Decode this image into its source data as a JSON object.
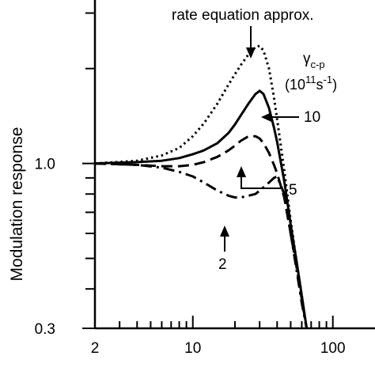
{
  "chart_data": {
    "type": "line",
    "title": "",
    "xlabel": "",
    "ylabel": "Modulation response",
    "x_scale": "log",
    "y_scale": "log",
    "xlim": [
      2,
      200
    ],
    "ylim": [
      0.3,
      3.3
    ],
    "x_tick_labels": [
      "2",
      "10",
      "100"
    ],
    "x_ticks": [
      2,
      10,
      100
    ],
    "y_tick_labels": [
      "1.0",
      "0.3"
    ],
    "y_ticks": [
      1.0,
      0.3
    ],
    "grid": false,
    "legend": "none",
    "series": [
      {
        "name": "rate equation approx.",
        "style": "dotted",
        "x": [
          2,
          4,
          6,
          8,
          10,
          12,
          15,
          18,
          20,
          22,
          25,
          28,
          30,
          32,
          35,
          38,
          40,
          45,
          50,
          55,
          60,
          65
        ],
        "y": [
          1.0,
          1.02,
          1.06,
          1.12,
          1.22,
          1.34,
          1.55,
          1.78,
          1.92,
          2.05,
          2.22,
          2.34,
          2.36,
          2.28,
          2.0,
          1.62,
          1.38,
          0.95,
          0.66,
          0.49,
          0.38,
          0.3
        ]
      },
      {
        "name": "10",
        "style": "solid",
        "x": [
          2,
          4,
          6,
          8,
          10,
          12,
          15,
          18,
          20,
          22,
          25,
          28,
          30,
          32,
          35,
          38,
          40,
          45,
          50,
          55,
          60,
          65
        ],
        "y": [
          1.0,
          1.01,
          1.02,
          1.04,
          1.07,
          1.1,
          1.16,
          1.25,
          1.33,
          1.42,
          1.55,
          1.66,
          1.7,
          1.66,
          1.5,
          1.3,
          1.17,
          0.88,
          0.64,
          0.49,
          0.38,
          0.3
        ]
      },
      {
        "name": "5",
        "style": "dashed",
        "x": [
          2,
          4,
          6,
          8,
          10,
          12,
          15,
          18,
          20,
          22,
          25,
          28,
          30,
          32,
          35,
          38,
          40,
          45,
          50,
          55,
          60,
          65
        ],
        "y": [
          1.0,
          0.99,
          0.98,
          0.98,
          0.99,
          1.01,
          1.05,
          1.1,
          1.14,
          1.18,
          1.22,
          1.22,
          1.2,
          1.16,
          1.08,
          0.99,
          0.93,
          0.78,
          0.6,
          0.47,
          0.37,
          0.3
        ]
      },
      {
        "name": "2",
        "style": "dash-dot",
        "x": [
          2,
          4,
          6,
          8,
          10,
          12,
          15,
          18,
          20,
          22,
          25,
          28,
          30,
          32,
          35,
          38,
          40,
          45,
          50,
          55,
          60,
          65
        ],
        "y": [
          1.0,
          0.99,
          0.97,
          0.94,
          0.91,
          0.87,
          0.82,
          0.79,
          0.78,
          0.78,
          0.79,
          0.8,
          0.82,
          0.84,
          0.87,
          0.9,
          0.91,
          0.8,
          0.6,
          0.46,
          0.36,
          0.3
        ]
      }
    ],
    "annotations": {
      "rate_label": "rate equation approx.",
      "gamma_symbol": "γ",
      "gamma_subscript": "c-p",
      "units_open": "(10",
      "units_exp": "11",
      "units_s": "s",
      "units_neg": "-1",
      "units_close": ")",
      "label_10": "10",
      "label_5": "5",
      "label_2": "2"
    }
  }
}
